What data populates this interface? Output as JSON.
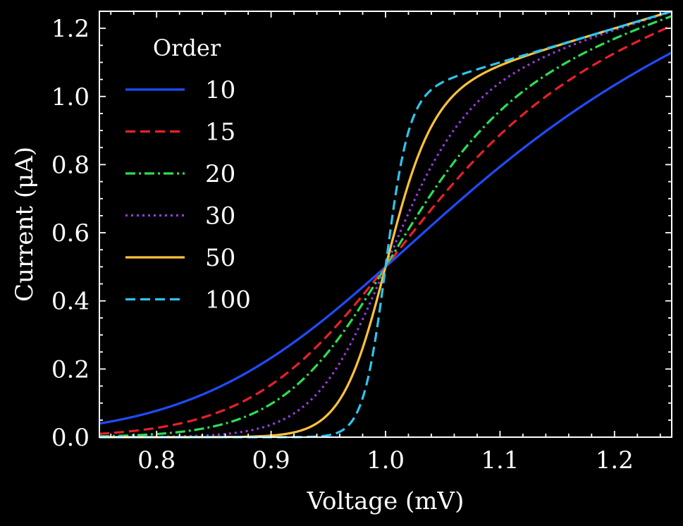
{
  "chart_data": {
    "type": "line",
    "xlabel": "Voltage (mV)",
    "ylabel": "Current (μA)",
    "xlim": [
      0.75,
      1.25
    ],
    "ylim": [
      0.0,
      1.25
    ],
    "x_ticks": [
      "0.8",
      "0.9",
      "1.0",
      "1.1",
      "1.2"
    ],
    "y_ticks": [
      "0.0",
      "0.2",
      "0.4",
      "0.6",
      "0.8",
      "1.0",
      "1.2"
    ],
    "grid": false,
    "legend": {
      "title": "Order",
      "placement": "top-left"
    },
    "background": "#000000",
    "series": [
      {
        "name": "10",
        "order": 10,
        "color": "#1f4cff",
        "dash": "solid",
        "x": [
          0.75,
          0.8,
          0.85,
          0.9,
          0.95,
          1.0,
          1.05,
          1.1,
          1.15,
          1.2,
          1.25
        ],
        "y": [
          0.0,
          0.01,
          0.04,
          0.11,
          0.26,
          0.5,
          0.74,
          0.93,
          1.07,
          1.17,
          1.23
        ]
      },
      {
        "name": "15",
        "order": 15,
        "color": "#e8202a",
        "dash": "dashed",
        "x": [
          0.75,
          0.8,
          0.85,
          0.9,
          0.95,
          1.0,
          1.05,
          1.1,
          1.15,
          1.2,
          1.25
        ],
        "y": [
          0.0,
          0.0,
          0.01,
          0.06,
          0.2,
          0.5,
          0.85,
          1.03,
          1.12,
          1.19,
          1.25
        ]
      },
      {
        "name": "20",
        "order": 20,
        "color": "#2edc55",
        "dash": "dashdot",
        "x": [
          0.75,
          0.8,
          0.85,
          0.9,
          0.95,
          1.0,
          1.05,
          1.1,
          1.15,
          1.2,
          1.25
        ],
        "y": [
          0.0,
          0.0,
          0.0,
          0.03,
          0.14,
          0.5,
          0.93,
          1.08,
          1.14,
          1.2,
          1.25
        ]
      },
      {
        "name": "30",
        "order": 30,
        "color": "#8f3fd8",
        "dash": "dotted",
        "x": [
          0.75,
          0.8,
          0.85,
          0.9,
          0.95,
          1.0,
          1.05,
          1.1,
          1.15,
          1.2,
          1.25
        ],
        "y": [
          0.0,
          0.0,
          0.0,
          0.01,
          0.07,
          0.5,
          1.0,
          1.1,
          1.15,
          1.2,
          1.25
        ]
      },
      {
        "name": "50",
        "order": 50,
        "color": "#ffc23a",
        "dash": "solid",
        "x": [
          0.75,
          0.8,
          0.85,
          0.9,
          0.95,
          1.0,
          1.05,
          1.1,
          1.15,
          1.2,
          1.25
        ],
        "y": [
          0.0,
          0.0,
          0.0,
          0.0,
          0.01,
          0.5,
          1.04,
          1.1,
          1.15,
          1.2,
          1.25
        ]
      },
      {
        "name": "100",
        "order": 100,
        "color": "#2ec4ee",
        "dash": "dashed",
        "x": [
          0.75,
          0.8,
          0.85,
          0.9,
          0.95,
          1.0,
          1.05,
          1.1,
          1.15,
          1.2,
          1.25
        ],
        "y": [
          0.0,
          0.0,
          0.0,
          0.0,
          0.0,
          0.5,
          1.05,
          1.1,
          1.15,
          1.2,
          1.25
        ]
      }
    ]
  }
}
